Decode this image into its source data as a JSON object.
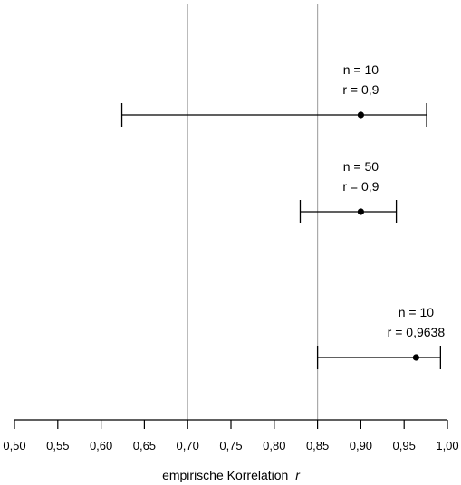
{
  "chart_data": {
    "type": "scatter",
    "title": "",
    "xlabel": "empirische Korrelation",
    "xlabel_var": "r",
    "ylabel": "",
    "xlim": [
      0.5,
      1.0
    ],
    "grid": false,
    "x_ticks": [
      0.5,
      0.55,
      0.6,
      0.65,
      0.7,
      0.75,
      0.8,
      0.85,
      0.9,
      0.95,
      1.0
    ],
    "x_tick_labels": [
      "0,50",
      "0,55",
      "0,60",
      "0,65",
      "0,70",
      "0,75",
      "0,80",
      "0,85",
      "0,90",
      "0,95",
      "1,00"
    ],
    "reference_lines": [
      0.7,
      0.85
    ],
    "reference_color": "#aaaaaa",
    "intervals": [
      {
        "label_n": "n = 10",
        "label_r": "r = 0,9",
        "estimate": 0.9,
        "lower": 0.624,
        "upper": 0.976
      },
      {
        "label_n": "n = 50",
        "label_r": "r = 0,9",
        "estimate": 0.9,
        "lower": 0.83,
        "upper": 0.941
      },
      {
        "label_n": "n = 10",
        "label_r": "r = 0,9638",
        "estimate": 0.9638,
        "lower": 0.85,
        "upper": 0.992
      }
    ]
  }
}
